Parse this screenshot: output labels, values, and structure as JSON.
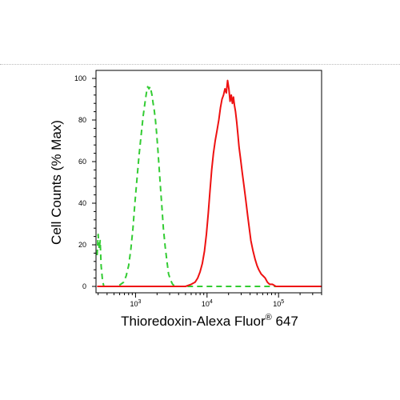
{
  "chart_data": {
    "type": "line",
    "title": "",
    "xlabel": {
      "main": "Thioredoxin-Alexa Fluor",
      "superscript": "®",
      "suffix": " 647"
    },
    "ylabel": "Cell Counts (% Max)",
    "x_scale": "log",
    "xlim": [
      280,
      400000
    ],
    "ylim": [
      0,
      100
    ],
    "x_ticks": [
      {
        "value": 1000,
        "base": "10",
        "exp": "3"
      },
      {
        "value": 10000,
        "base": "10",
        "exp": "4"
      },
      {
        "value": 100000,
        "base": "10",
        "exp": "5"
      }
    ],
    "y_ticks": [
      "0",
      "20",
      "40",
      "60",
      "80",
      "100"
    ],
    "grid": false,
    "legend": "none",
    "series": [
      {
        "color": "#33cc33",
        "style": "dashed",
        "x": [
          290,
          300,
          310,
          320,
          330,
          345,
          360,
          380,
          430,
          500,
          560,
          620,
          680,
          740,
          800,
          860,
          920,
          980,
          1050,
          1120,
          1200,
          1280,
          1350,
          1420,
          1480,
          1540,
          1600,
          1650,
          1700,
          1760,
          1820,
          1900,
          1970,
          2050,
          2150,
          2250,
          2350,
          2450,
          2600,
          2750,
          2900,
          3100,
          3300,
          3600,
          4000,
          5000,
          7000,
          10000,
          20000,
          50000,
          100000,
          200000,
          400000
        ],
        "y": [
          15,
          25,
          18,
          22,
          10,
          3,
          0,
          0,
          0,
          0,
          0,
          1,
          2,
          5,
          10,
          18,
          28,
          40,
          52,
          63,
          73,
          82,
          88,
          93,
          96,
          95,
          96,
          94,
          92,
          88,
          85,
          80,
          74,
          66,
          56,
          46,
          37,
          28,
          19,
          12,
          6,
          3,
          1,
          0,
          0,
          0,
          0,
          0,
          0,
          0,
          0,
          0,
          0
        ]
      },
      {
        "color": "#ee1111",
        "style": "solid",
        "x": [
          290,
          1000,
          3000,
          5000,
          6000,
          6800,
          7400,
          8000,
          8600,
          9200,
          9800,
          10400,
          11000,
          11600,
          12300,
          13000,
          13800,
          14600,
          15400,
          16200,
          17000,
          17800,
          18600,
          19400,
          20200,
          21000,
          21800,
          22600,
          23400,
          24200,
          25000,
          26000,
          27000,
          28000,
          29500,
          31000,
          33000,
          35000,
          37000,
          39000,
          41000,
          44000,
          47000,
          50000,
          53000,
          57000,
          61000,
          65000,
          70000,
          75000,
          82000,
          92000,
          110000,
          140000,
          200000,
          400000
        ],
        "y": [
          0,
          0,
          0,
          0,
          1,
          2,
          4,
          7,
          11,
          17,
          25,
          35,
          46,
          56,
          64,
          70,
          75,
          80,
          86,
          90,
          92,
          95,
          93,
          99,
          95,
          89,
          92,
          88,
          91,
          87,
          84,
          79,
          73,
          67,
          61,
          55,
          48,
          41,
          34,
          28,
          22,
          17,
          13,
          10,
          8,
          6,
          5,
          4,
          2,
          1,
          1,
          0,
          0,
          0,
          0,
          0
        ]
      }
    ]
  }
}
